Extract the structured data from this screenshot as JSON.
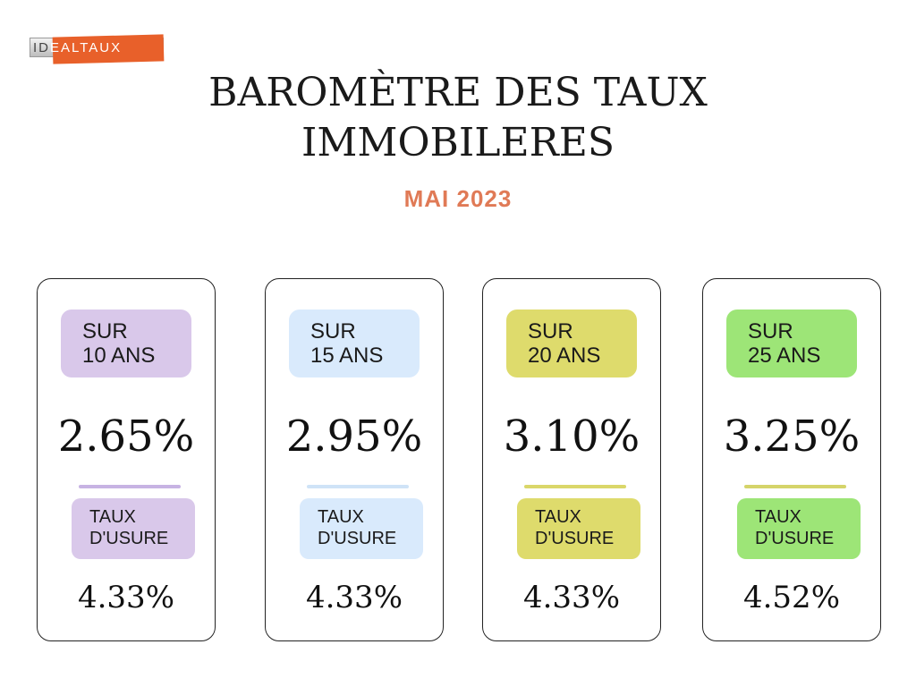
{
  "logo": {
    "prefix": "ID",
    "rest": "EALTAUX"
  },
  "title_line1": "BAROMÈTRE DES TAUX",
  "title_line2": "IMMOBILERES",
  "subtitle": "MAI 2023",
  "colors": {
    "accent": "#e07a56",
    "logo_orange": "#e8602a"
  },
  "cards": [
    {
      "duration_line1": "SUR",
      "duration_line2": "10 ANS",
      "rate": "2.65%",
      "usure_label_line1": "TAUX",
      "usure_label_line2": "D'USURE",
      "usure_rate": "4.33%",
      "color": "#d9c8ea",
      "stroke": "#c7b3e3"
    },
    {
      "duration_line1": "SUR",
      "duration_line2": "15 ANS",
      "rate": "2.95%",
      "usure_label_line1": "TAUX",
      "usure_label_line2": "D'USURE",
      "usure_rate": "4.33%",
      "color": "#d9eafc",
      "stroke": "#cfe3f7"
    },
    {
      "duration_line1": "SUR",
      "duration_line2": "20 ANS",
      "rate": "3.10%",
      "usure_label_line1": "TAUX",
      "usure_label_line2": "D'USURE",
      "usure_rate": "4.33%",
      "color": "#dedb6c",
      "stroke": "#dad76a"
    },
    {
      "duration_line1": "SUR",
      "duration_line2": "25 ANS",
      "rate": "3.25%",
      "usure_label_line1": "TAUX",
      "usure_label_line2": "D'USURE",
      "usure_rate": "4.52%",
      "color": "#9de577",
      "stroke": "#d5d46a"
    }
  ]
}
